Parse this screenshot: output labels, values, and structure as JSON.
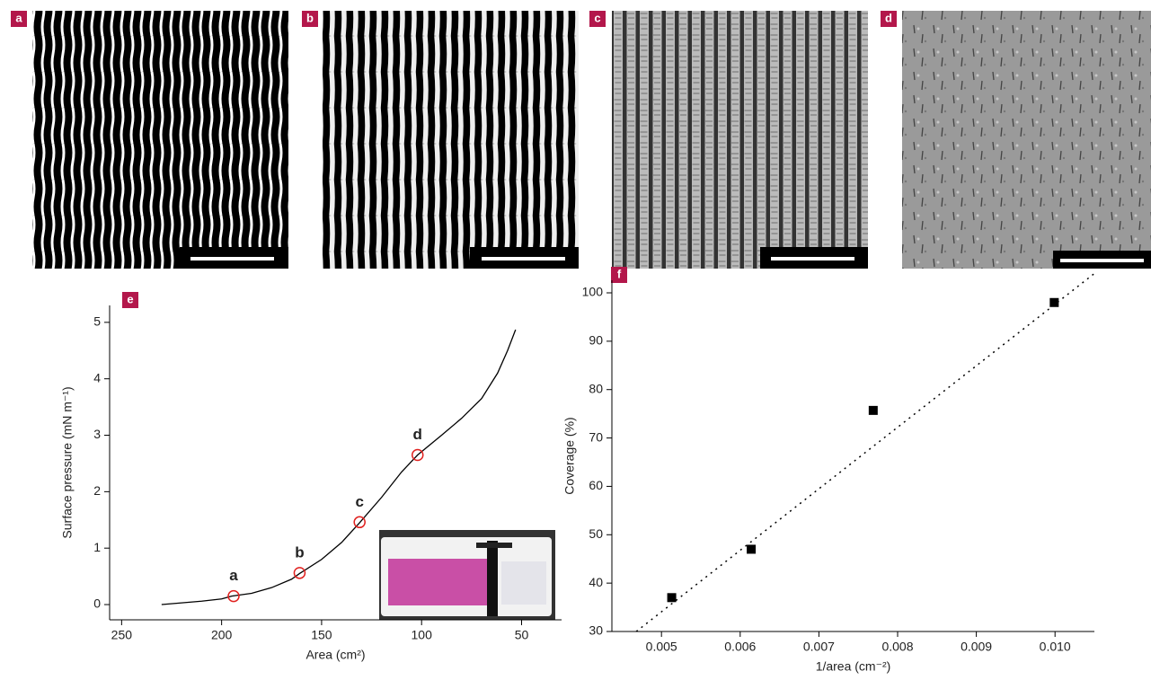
{
  "panels": {
    "labels": [
      "a",
      "b",
      "c",
      "d"
    ]
  },
  "chart_data": [
    {
      "type": "line",
      "panel_label": "e",
      "x_label": "Area (cm²)",
      "y_label": "Surface pressure (mN m⁻¹)",
      "x": [
        230,
        220,
        210,
        200,
        195,
        185,
        175,
        165,
        161,
        150,
        140,
        131,
        120,
        110,
        102,
        90,
        80,
        70,
        62,
        57,
        53
      ],
      "values": [
        0,
        0.03,
        0.06,
        0.1,
        0.15,
        0.2,
        0.3,
        0.45,
        0.55,
        0.8,
        1.1,
        1.45,
        1.9,
        2.35,
        2.65,
        3.0,
        3.3,
        3.65,
        4.1,
        4.5,
        4.87
      ],
      "color": "#000000",
      "annotations": [
        {
          "label": "a",
          "x": 194,
          "y": 0.15
        },
        {
          "label": "b",
          "x": 161,
          "y": 0.56
        },
        {
          "label": "c",
          "x": 131,
          "y": 1.46
        },
        {
          "label": "d",
          "x": 102,
          "y": 2.65
        }
      ],
      "annotation_color": "#e0201e",
      "xlim": [
        256,
        30
      ],
      "xticks": [
        250,
        200,
        150,
        100,
        50
      ],
      "ylim": [
        -0.27,
        5.3
      ],
      "yticks": [
        0,
        1,
        2,
        3,
        4,
        5
      ]
    },
    {
      "type": "scatter",
      "panel_label": "f",
      "x_label": "1/area (cm⁻²)",
      "y_label": "Coverage (%)",
      "x": [
        0.00513,
        0.00614,
        0.00769,
        0.00999
      ],
      "values": [
        37,
        47,
        75.7,
        98
      ],
      "color": "#000000",
      "trend_line": {
        "x": [
          0.00468,
          0.0105
        ],
        "values": [
          30,
          104
        ]
      },
      "xlim": [
        0.00437,
        0.0105
      ],
      "xticks": [
        0.005,
        0.006,
        0.007,
        0.008,
        0.009,
        {
          "value": 0.01,
          "label": "0.010"
        }
      ],
      "ylim": [
        30,
        102.6
      ],
      "yticks": [
        30,
        40,
        50,
        60,
        70,
        80,
        90,
        100
      ]
    }
  ]
}
